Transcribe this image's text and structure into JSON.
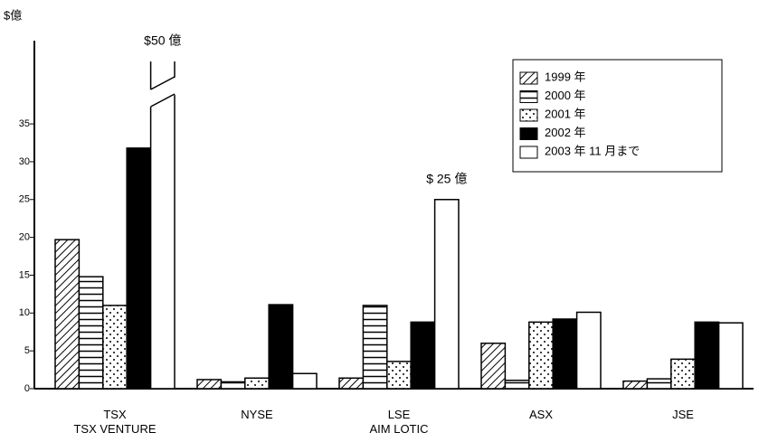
{
  "chart_data": {
    "type": "bar",
    "y_axis_label": "$億",
    "categories": [
      "TSX\nTSX VENTURE",
      "NYSE",
      "LSE\nAIM LOTIC",
      "ASX",
      "JSE"
    ],
    "series": [
      {
        "name": "1999 年",
        "color": "#000000",
        "pattern": "diagonal",
        "values": [
          19.7,
          1.2,
          1.4,
          6.0,
          1.0
        ]
      },
      {
        "name": "2000 年",
        "color": "#000000",
        "pattern": "horizontal",
        "values": [
          14.8,
          0.9,
          11.0,
          1.1,
          1.3
        ]
      },
      {
        "name": "2001 年",
        "color": "#000000",
        "pattern": "dots",
        "values": [
          11.0,
          1.4,
          3.6,
          8.8,
          3.9
        ]
      },
      {
        "name": "2002 年",
        "color": "#000000",
        "pattern": "solid",
        "values": [
          31.8,
          11.1,
          8.8,
          9.2,
          8.8
        ]
      },
      {
        "name": "2003 年 11 月まで",
        "color": "#000000",
        "pattern": "none",
        "values": [
          50,
          2.0,
          25,
          10.1,
          8.7
        ],
        "value_labels": [
          "$50 億",
          null,
          "$ 25 億",
          null,
          null
        ]
      }
    ],
    "ylim": [
      0,
      46
    ],
    "yticks": [
      0,
      5,
      10,
      15,
      20,
      25,
      30,
      35
    ],
    "grid": false,
    "legend": "upper right"
  }
}
